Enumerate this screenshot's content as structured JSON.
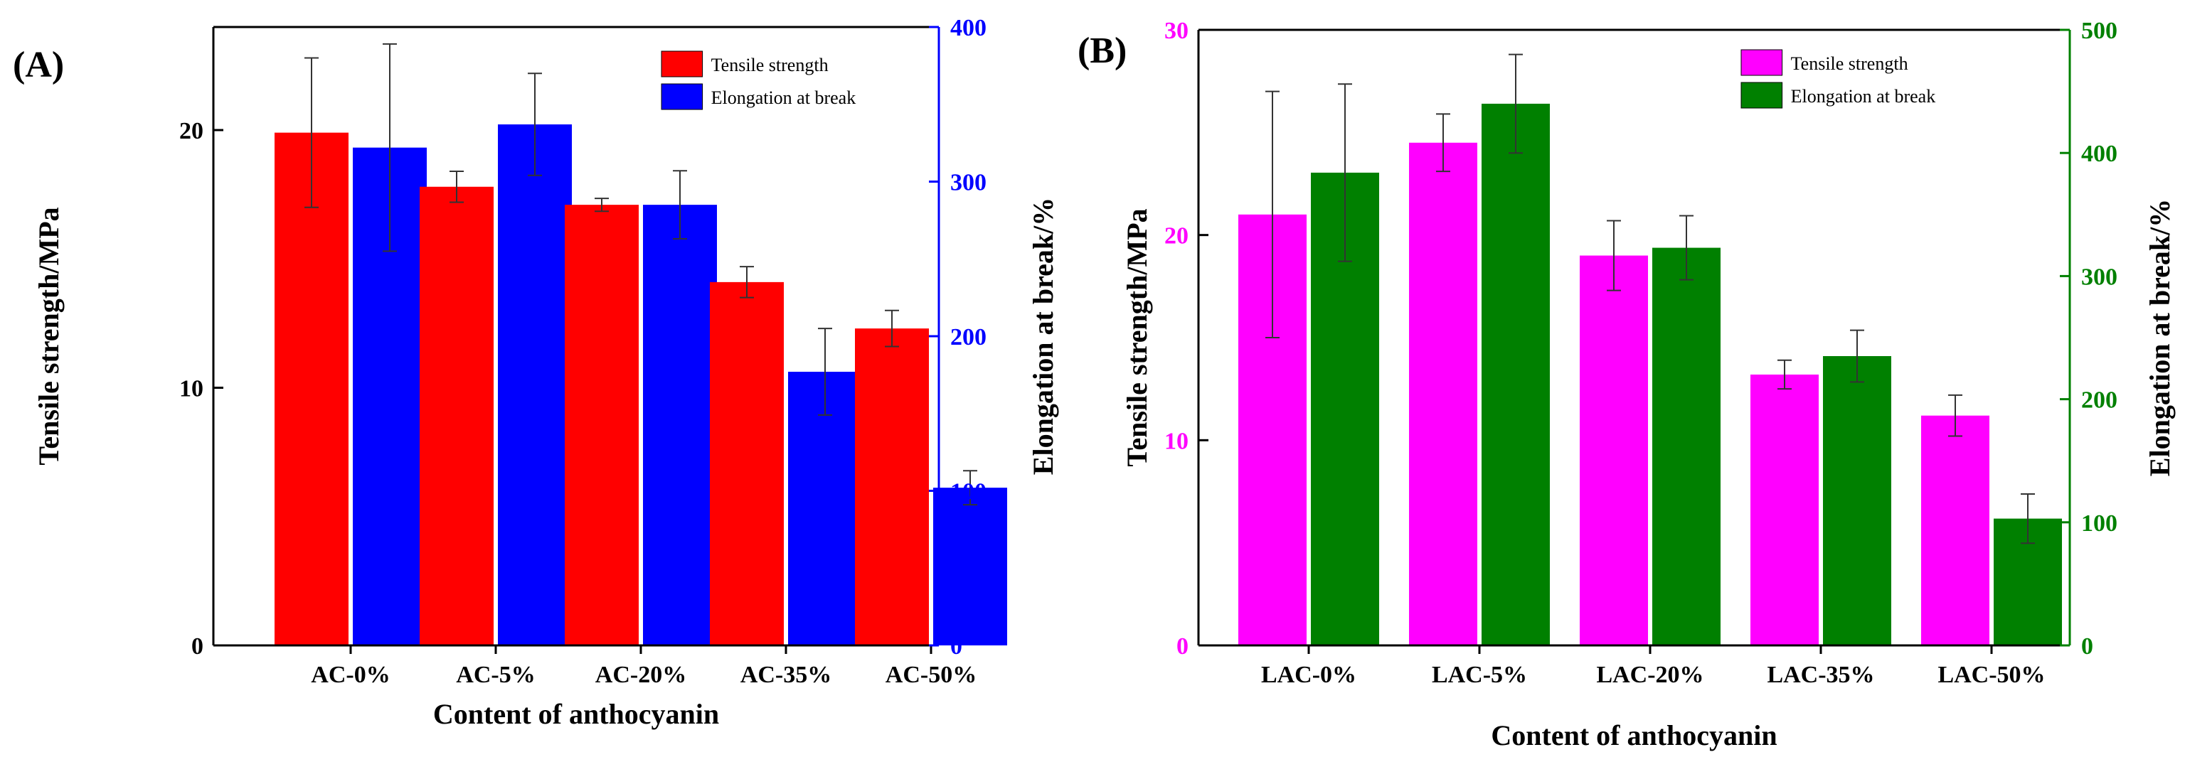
{
  "chart_data": [
    {
      "type": "bar",
      "panel_label": "(A)",
      "categories": [
        "AC-0%",
        "AC-5%",
        "AC-20%",
        "AC-35%",
        "AC-50%"
      ],
      "xlabel": "Content of anthocyanin",
      "ylabel_left": "Tensile strength/MPa",
      "ylabel_right": "Elongation at break/%",
      "ylim_left": [
        0,
        24
      ],
      "ylim_right": [
        0,
        400
      ],
      "yticks_left": [
        0,
        10,
        20
      ],
      "yticks_right": [
        0,
        100,
        200,
        300,
        400
      ],
      "grid": false,
      "legend_position": "top-right",
      "series": [
        {
          "name": "Tensile strength",
          "axis": "left",
          "color": "#ff0000",
          "values": [
            19.9,
            17.8,
            17.1,
            14.1,
            12.3
          ],
          "errors": [
            2.9,
            0.6,
            0.25,
            0.6,
            0.7
          ]
        },
        {
          "name": "Elongation at break",
          "axis": "right",
          "color": "#0000ff",
          "values": [
            322,
            337,
            285,
            177,
            102
          ],
          "errors": [
            67,
            33,
            22,
            28,
            11
          ]
        }
      ]
    },
    {
      "type": "bar",
      "panel_label": "(B)",
      "categories": [
        "LAC-0%",
        "LAC-5%",
        "LAC-20%",
        "LAC-35%",
        "LAC-50%"
      ],
      "xlabel": "Content of anthocyanin",
      "ylabel_left": "Tensile strength/MPa",
      "ylabel_right": "Elongation at break/%",
      "ylim_left": [
        0,
        30
      ],
      "ylim_right": [
        0,
        500
      ],
      "yticks_left": [
        0,
        10,
        20,
        30
      ],
      "yticks_right": [
        0,
        100,
        200,
        300,
        400,
        500
      ],
      "grid": false,
      "legend_position": "top-right",
      "left_axis_color": "#ff00ff",
      "right_axis_color": "#008000",
      "series": [
        {
          "name": "Tensile strength",
          "axis": "left",
          "color": "#ff00ff",
          "values": [
            21.0,
            24.5,
            19.0,
            13.2,
            11.2
          ],
          "errors": [
            6.0,
            1.4,
            1.7,
            0.7,
            1.0
          ]
        },
        {
          "name": "Elongation at break",
          "axis": "right",
          "color": "#008000",
          "values": [
            384,
            440,
            323,
            235,
            103
          ],
          "errors": [
            72,
            40,
            26,
            21,
            20
          ]
        }
      ]
    }
  ]
}
